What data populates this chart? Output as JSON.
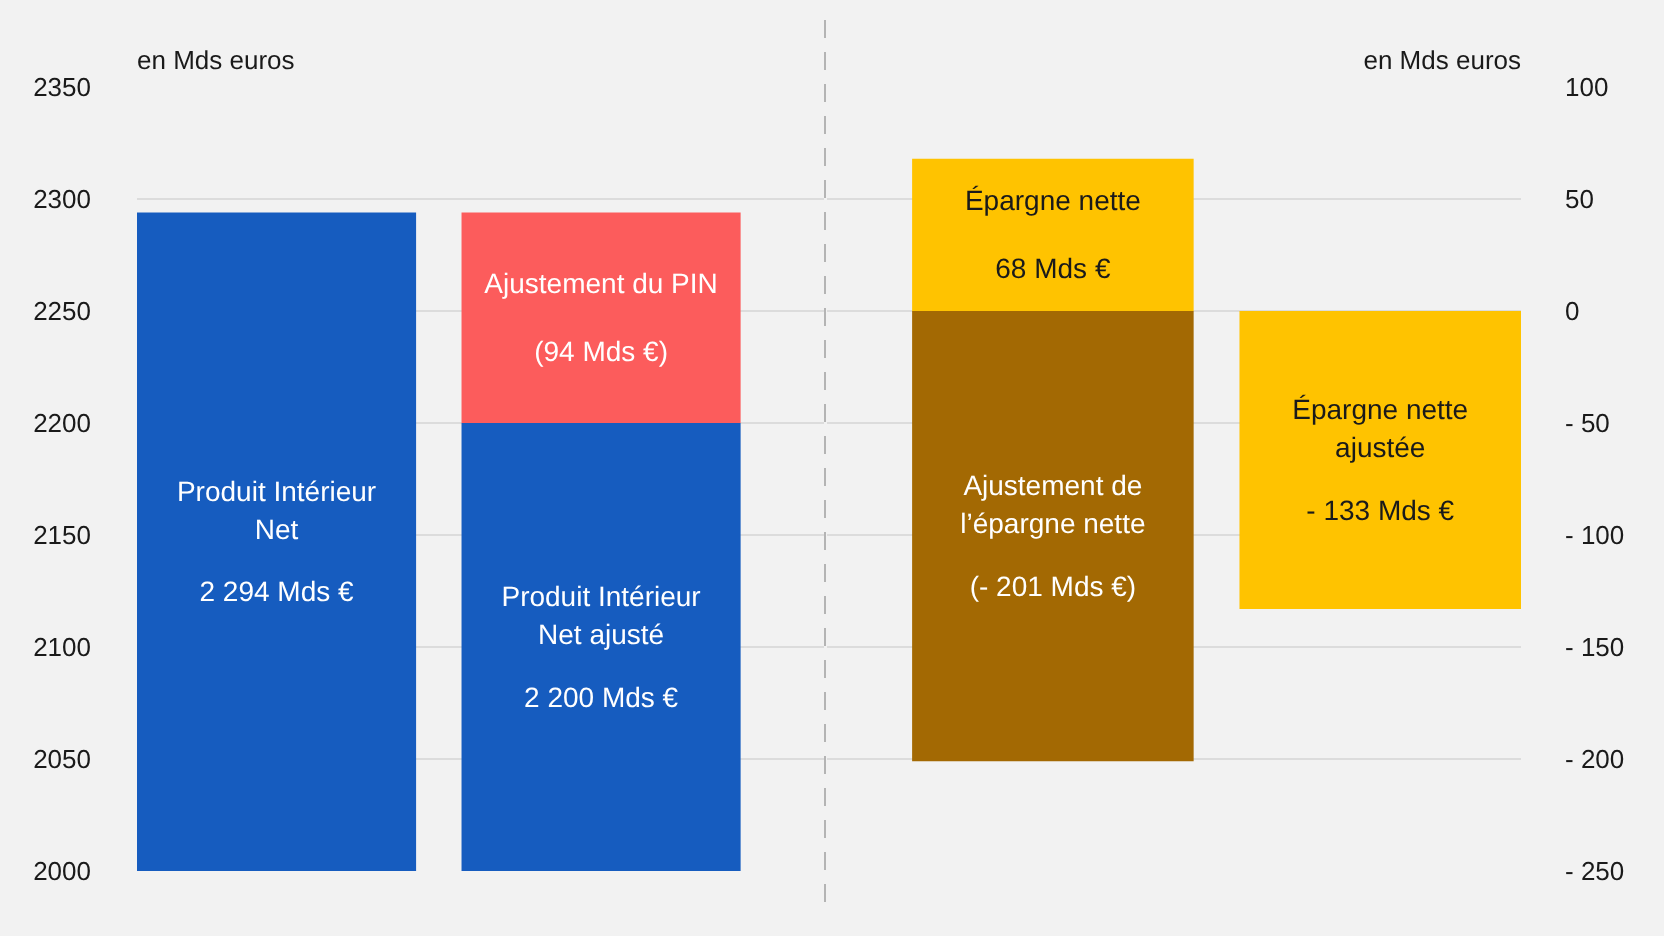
{
  "chart_data": [
    {
      "type": "bar",
      "categories": [
        null,
        null
      ],
      "ylabel": "en Mds euros",
      "ylim": [
        2000,
        2350
      ],
      "yticks": [
        2000,
        2050,
        2100,
        2150,
        2200,
        2250,
        2300,
        2350
      ],
      "stacked": true,
      "grid": "y",
      "series": [
        {
          "name": "Produit Intérieur Net",
          "color": "#165cbf",
          "values": [
            2294,
            null
          ],
          "value_labels": [
            "2 294 Mds €",
            null
          ]
        },
        {
          "name": "Produit Intérieur Net ajusté",
          "color": "#165cbf",
          "values": [
            null,
            2200
          ],
          "value_labels": [
            null,
            "2 200 Mds €"
          ]
        },
        {
          "name": "Ajustement du PIN",
          "color": "#fc5c5c",
          "values": [
            null,
            94
          ],
          "base": [
            null,
            2200
          ],
          "value_labels": [
            null,
            "(94 Mds €)"
          ]
        }
      ]
    },
    {
      "type": "bar",
      "categories": [
        null,
        null
      ],
      "y2label": "en Mds euros",
      "y2lim": [
        -250,
        100
      ],
      "y2ticks": [
        {
          "value": -250,
          "label": "- 250"
        },
        {
          "value": -200,
          "label": "- 200"
        },
        {
          "value": -150,
          "label": "- 150"
        },
        {
          "value": -100,
          "label": "- 100"
        },
        {
          "value": -50,
          "label": "- 50"
        },
        0,
        50,
        100
      ],
      "stacked": true,
      "grid": "y",
      "series": [
        {
          "name": "Épargne nette",
          "color": "#ffc300",
          "axis": "y2",
          "values": [
            68,
            null
          ],
          "value_labels": [
            "68 Mds €",
            null
          ]
        },
        {
          "name": "Ajustement de l’épargne nette",
          "color": "#a36903",
          "axis": "y2",
          "values": [
            -201,
            null
          ],
          "value_labels": [
            "(- 201 Mds €)",
            null
          ]
        },
        {
          "name": "Épargne nette ajustée",
          "color": "#ffc300",
          "axis": "y2",
          "values": [
            null,
            -133
          ],
          "value_labels": [
            null,
            "- 133 Mds €"
          ]
        }
      ]
    }
  ]
}
